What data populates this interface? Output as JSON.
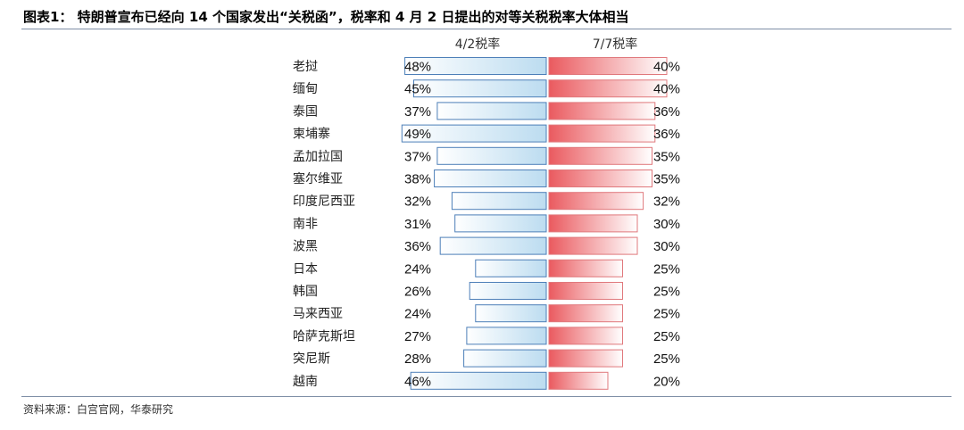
{
  "title": "图表1：  特朗普宣布已经向 14 个国家发出“关税函”，税率和 4 月 2 日提出的对等关税税率大体相当",
  "source": "资料来源：白宫官网，华泰研究",
  "colors": {
    "left_bar_fill_start": "#ffffff",
    "left_bar_fill_end": "#bcdcf0",
    "left_bar_stroke": "#4d7fb8",
    "right_bar_fill_start": "#ea5a5f",
    "right_bar_fill_end": "#ffffff",
    "right_bar_stroke": "#e0787c",
    "rule": "#7f8fa6"
  },
  "chart_data": {
    "type": "bar",
    "orientation": "horizontal-butterfly",
    "title": "",
    "xlabel": "",
    "ylabel": "",
    "grid": false,
    "legend": "none",
    "categories": [
      "老挝",
      "缅甸",
      "泰国",
      "柬埔寨",
      "孟加拉国",
      "塞尔维亚",
      "印度尼西亚",
      "南非",
      "波黑",
      "日本",
      "韩国",
      "马来西亚",
      "哈萨克斯坦",
      "突尼斯",
      "越南"
    ],
    "series": [
      {
        "name": "4/2税率",
        "values": [
          48,
          45,
          37,
          49,
          37,
          38,
          32,
          31,
          36,
          24,
          26,
          24,
          27,
          28,
          46
        ],
        "labels": [
          "48%",
          "45%",
          "37%",
          "49%",
          "37%",
          "38%",
          "32%",
          "31%",
          "36%",
          "24%",
          "26%",
          "24%",
          "27%",
          "28%",
          "46%"
        ]
      },
      {
        "name": "7/7税率",
        "values": [
          40,
          40,
          36,
          36,
          35,
          35,
          32,
          30,
          30,
          25,
          25,
          25,
          25,
          25,
          20
        ],
        "labels": [
          "40%",
          "40%",
          "36%",
          "36%",
          "35%",
          "35%",
          "32%",
          "30%",
          "30%",
          "25%",
          "25%",
          "25%",
          "25%",
          "25%",
          "20%"
        ]
      }
    ],
    "xlim": [
      0,
      50
    ]
  }
}
